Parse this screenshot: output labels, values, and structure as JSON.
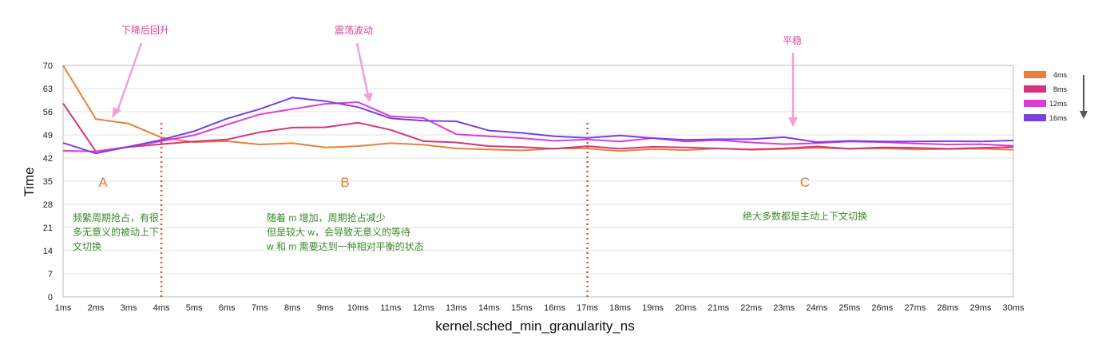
{
  "chart_data": {
    "type": "line",
    "xlabel": "kernel.sched_min_granularity_ns",
    "ylabel": "Time",
    "ylim": [
      0,
      70
    ],
    "y_ticks": [
      "0",
      "7",
      "14",
      "21",
      "28",
      "35",
      "42",
      "49",
      "56",
      "63",
      "70"
    ],
    "grid": true,
    "legend_position": "right",
    "categories": [
      "1ms",
      "2ms",
      "3ms",
      "4ms",
      "5ms",
      "6ms",
      "7ms",
      "8ms",
      "9ms",
      "10ms",
      "11ms",
      "12ms",
      "13ms",
      "14ms",
      "15ms",
      "16ms",
      "17ms",
      "18ms",
      "19ms",
      "20ms",
      "21ms",
      "22ms",
      "23ms",
      "24ms",
      "25ms",
      "26ms",
      "27ms",
      "28ms",
      "29ms",
      "30ms"
    ],
    "series": [
      {
        "name": "4ms",
        "color": "#ea7f3b",
        "values": [
          70,
          53.8,
          52.4,
          48.2,
          46.8,
          47.1,
          46.1,
          46.5,
          45.2,
          45.6,
          46.5,
          46,
          44.9,
          44.6,
          44.3,
          44.9,
          44.9,
          44.1,
          44.7,
          44.4,
          44.9,
          44.5,
          44.7,
          45.1,
          44.8,
          44.9,
          44.6,
          44.7,
          44.8,
          44.5
        ]
      },
      {
        "name": "8ms",
        "color": "#d6347a",
        "values": [
          58.5,
          44,
          45.3,
          46.2,
          47,
          47.6,
          49.8,
          51.2,
          51.3,
          52.7,
          50.5,
          47.1,
          46.7,
          45.6,
          45.3,
          44.8,
          45.6,
          44.8,
          45.4,
          45.2,
          44.9,
          44.6,
          44.9,
          45.5,
          44.8,
          45.2,
          45.1,
          44.8,
          45.1,
          45.3
        ]
      },
      {
        "name": "12ms",
        "color": "#e03ad6",
        "values": [
          44.2,
          44,
          45.4,
          47.1,
          48.9,
          52.1,
          55.2,
          56.8,
          58.4,
          58.9,
          54.6,
          54.1,
          49.2,
          48.6,
          48,
          47.2,
          47.6,
          47,
          48,
          47,
          47.4,
          46.7,
          46.2,
          46.5,
          47,
          46.8,
          46.4,
          46.1,
          46.2,
          45.7
        ]
      },
      {
        "name": "16ms",
        "color": "#7a3fe0",
        "values": [
          46.6,
          43.4,
          45.4,
          47.5,
          50.1,
          53.9,
          56.8,
          60.3,
          59.2,
          57.4,
          54,
          53.3,
          53.1,
          50.3,
          49.6,
          48.6,
          48.1,
          48.8,
          48,
          47.5,
          47.7,
          47.7,
          48.3,
          46.8,
          47.2,
          47,
          47,
          47.1,
          47,
          47.3
        ]
      }
    ],
    "annotations": {
      "top_notes": [
        "下降后回升",
        "震荡波动",
        "平稳"
      ],
      "regions": [
        "A",
        "B",
        "C"
      ],
      "region_notes": [
        [
          "频繁周期抢占，有很",
          "多无意义的被动上下",
          "文切换"
        ],
        [
          "随着 m 增加，周期抢占减少",
          "但是较大 w，会导致无意义的等待",
          "w 和 m 需要达到一种相对平衡的状态"
        ],
        [
          "绝大多数都是主动上下文切换"
        ]
      ],
      "divider_categories": [
        "4ms",
        "17ms"
      ]
    }
  }
}
